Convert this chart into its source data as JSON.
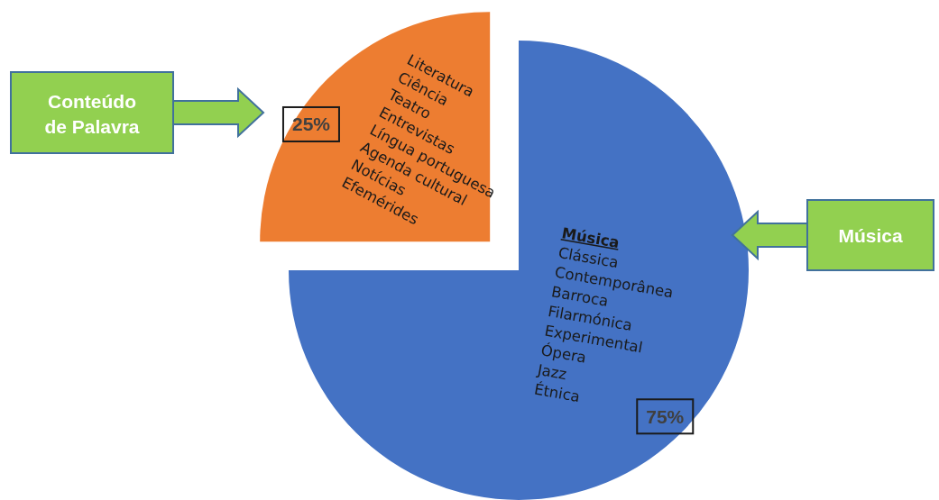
{
  "chart_data": {
    "type": "pie",
    "categories": [
      "Conteúdo de Palavra",
      "Música"
    ],
    "values": [
      25,
      75
    ],
    "colors": [
      "#ed7d31",
      "#4472c4"
    ],
    "value_labels": [
      "25%",
      "75%"
    ],
    "annotations": [
      "Literatura\nCiência\nTeatro\nEntrevistas\nLíngua portuguesa\nAgenda cultural\nNotícias\nEfemérides",
      "Música\nClássica\nContemporânea\nBarroca\nFilarmónica\nExperimental\nÓpera\nJazz\nÉtnica"
    ]
  }
}
